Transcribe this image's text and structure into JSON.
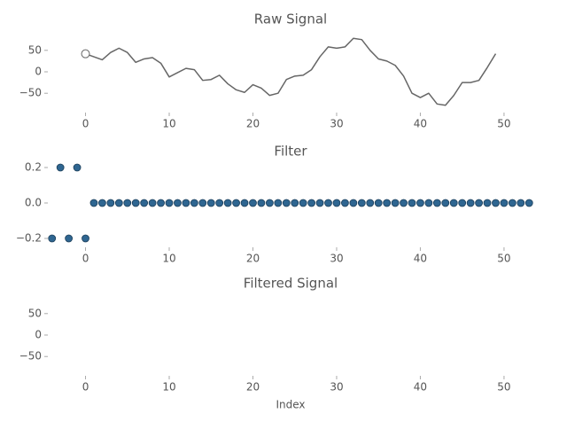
{
  "chart_data": [
    {
      "type": "line",
      "title": "Raw Signal",
      "x": [
        0,
        1,
        2,
        3,
        4,
        5,
        6,
        7,
        8,
        9,
        10,
        11,
        12,
        13,
        14,
        15,
        16,
        17,
        18,
        19,
        20,
        21,
        22,
        23,
        24,
        25,
        26,
        27,
        28,
        29,
        30,
        31,
        32,
        33,
        34,
        35,
        36,
        37,
        38,
        39,
        40,
        41,
        42,
        43,
        44,
        45,
        46,
        47,
        48,
        49
      ],
      "values": [
        42,
        35,
        28,
        45,
        55,
        45,
        22,
        30,
        33,
        20,
        -12,
        -2,
        8,
        5,
        -20,
        -18,
        -8,
        -28,
        -42,
        -48,
        -30,
        -38,
        -55,
        -50,
        -18,
        -10,
        -8,
        5,
        35,
        58,
        55,
        58,
        78,
        75,
        50,
        30,
        25,
        15,
        -10,
        -50,
        -60,
        -50,
        -75,
        -78,
        -55,
        -25,
        -25,
        -20,
        10,
        42
      ],
      "color": "#666666",
      "xlim": [
        -4.5,
        53.5
      ],
      "xticks": [
        0,
        10,
        20,
        30,
        40,
        50
      ],
      "ylim": [
        -95,
        95
      ],
      "yticks": [
        {
          "value": -50,
          "label": "−50"
        },
        0,
        50
      ],
      "grid": false
    },
    {
      "type": "scatter",
      "title": "Filter",
      "x": [
        -4,
        -3,
        -2,
        -1,
        0,
        1,
        2,
        3,
        4,
        5,
        6,
        7,
        8,
        9,
        10,
        11,
        12,
        13,
        14,
        15,
        16,
        17,
        18,
        19,
        20,
        21,
        22,
        23,
        24,
        25,
        26,
        27,
        28,
        29,
        30,
        31,
        32,
        33,
        34,
        35,
        36,
        37,
        38,
        39,
        40,
        41,
        42,
        43,
        44,
        45,
        46,
        47,
        48,
        49,
        50,
        51,
        52,
        53
      ],
      "values": [
        -0.2,
        0.2,
        -0.2,
        0.2,
        -0.2,
        0,
        0,
        0,
        0,
        0,
        0,
        0,
        0,
        0,
        0,
        0,
        0,
        0,
        0,
        0,
        0,
        0,
        0,
        0,
        0,
        0,
        0,
        0,
        0,
        0,
        0,
        0,
        0,
        0,
        0,
        0,
        0,
        0,
        0,
        0,
        0,
        0,
        0,
        0,
        0,
        0,
        0,
        0,
        0,
        0,
        0,
        0,
        0,
        0,
        0,
        0,
        0,
        0
      ],
      "color": "#2f6691",
      "xlim": [
        -4.5,
        53.5
      ],
      "xticks": [
        0,
        10,
        20,
        30,
        40,
        50
      ],
      "ylim": [
        -0.25,
        0.25
      ],
      "yticks": [
        {
          "value": -0.2,
          "label": "−0.2"
        },
        {
          "value": 0,
          "label": "0.0"
        },
        0.2
      ],
      "grid": false
    },
    {
      "type": "line",
      "title": "Filtered Signal",
      "x_label": "Index",
      "x": [],
      "values": [],
      "color": "#666666",
      "xlim": [
        -4.5,
        53.5
      ],
      "xticks": [
        0,
        10,
        20,
        30,
        40,
        50
      ],
      "ylim": [
        -95,
        95
      ],
      "yticks": [
        {
          "value": -50,
          "label": "−50"
        },
        0,
        50
      ],
      "grid": false
    }
  ]
}
